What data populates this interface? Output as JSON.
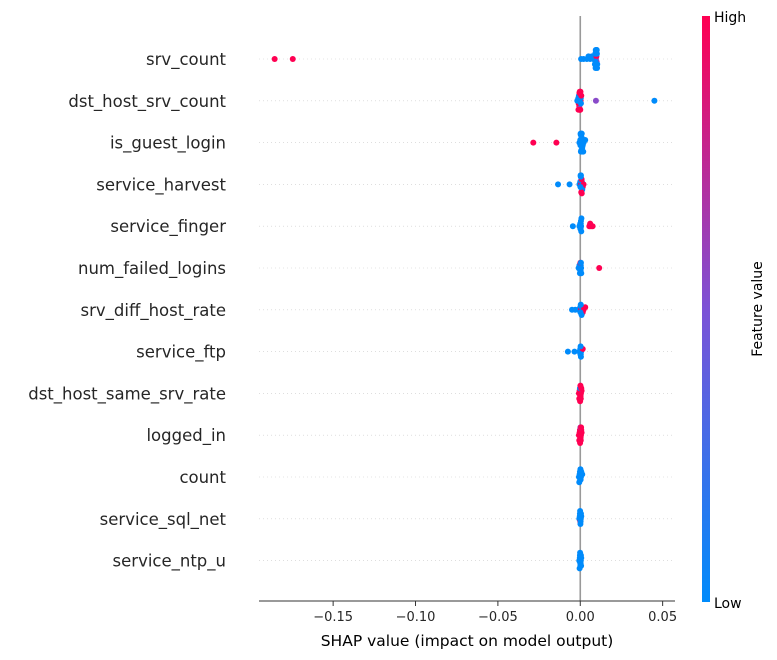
{
  "chart_data": {
    "type": "scatter",
    "title": "",
    "xlabel": "SHAP value (impact on model output)",
    "xlim": [
      -0.195,
      0.0575
    ],
    "xticks": [
      -0.15,
      -0.1,
      -0.05,
      0.0,
      0.05
    ],
    "xtick_labels": [
      "−0.15",
      "−0.10",
      "−0.05",
      "0.00",
      "0.05"
    ],
    "colorbar": {
      "label": "Feature value",
      "high": "High",
      "low": "Low",
      "low_color": "#008bfb",
      "mid_color": "#7c52d6",
      "high_color": "#ff0052"
    },
    "features": [
      {
        "name": "srv_count",
        "points": [
          {
            "x": -0.1855,
            "v": 1
          },
          {
            "x": -0.1745,
            "v": 1
          },
          {
            "x": 0.0005,
            "v": 0
          },
          {
            "x": 0.002,
            "v": 0
          },
          {
            "x": 0.004,
            "v": 0
          },
          {
            "x": 0.005,
            "v": 0
          },
          {
            "x": 0.006,
            "v": 0
          },
          {
            "x": 0.007,
            "v": 0
          },
          {
            "x": 0.008,
            "v": 0
          },
          {
            "x": 0.009,
            "v": 0
          },
          {
            "x": 0.0095,
            "v": 0
          },
          {
            "x": 0.0098,
            "v": 1
          },
          {
            "x": 0.0099,
            "v": 0.6
          },
          {
            "x": 0.0101,
            "v": 0
          },
          {
            "x": 0.0103,
            "v": 0
          },
          {
            "x": 0.0096,
            "v": 0
          },
          {
            "x": 0.0097,
            "v": 0
          },
          {
            "x": 0.0094,
            "v": 0
          },
          {
            "x": 0.0093,
            "v": 0
          },
          {
            "x": 0.0092,
            "v": 0
          },
          {
            "x": 0.0091,
            "v": 0
          },
          {
            "x": 0.0089,
            "v": 0
          },
          {
            "x": 0.0099,
            "v": 0
          },
          {
            "x": 0.0102,
            "v": 0
          },
          {
            "x": 0.01,
            "v": 0
          }
        ]
      },
      {
        "name": "dst_host_srv_count",
        "points": [
          {
            "x": -0.0015,
            "v": 1
          },
          {
            "x": -0.0012,
            "v": 0
          },
          {
            "x": -0.001,
            "v": 1
          },
          {
            "x": -0.0008,
            "v": 0
          },
          {
            "x": -0.0006,
            "v": 1
          },
          {
            "x": -0.0005,
            "v": 1
          },
          {
            "x": -0.0004,
            "v": 0.4
          },
          {
            "x": -0.0003,
            "v": 1
          },
          {
            "x": -0.0002,
            "v": 1
          },
          {
            "x": -0.0001,
            "v": 1
          },
          {
            "x": 0.0,
            "v": 1
          },
          {
            "x": 0.0001,
            "v": 1
          },
          {
            "x": 0.0002,
            "v": 1
          },
          {
            "x": 0.0003,
            "v": 0
          },
          {
            "x": 0.0004,
            "v": 0
          },
          {
            "x": 0.0006,
            "v": 1
          },
          {
            "x": -0.0018,
            "v": 0
          },
          {
            "x": -0.0011,
            "v": 1
          },
          {
            "x": 0.0,
            "v": 1
          },
          {
            "x": -0.0003,
            "v": 1
          },
          {
            "x": 0.0095,
            "v": 0.55
          },
          {
            "x": 0.045,
            "v": 0
          }
        ]
      },
      {
        "name": "is_guest_login",
        "points": [
          {
            "x": -0.0285,
            "v": 1
          },
          {
            "x": -0.0145,
            "v": 1
          },
          {
            "x": -0.0005,
            "v": 0
          },
          {
            "x": 0.0,
            "v": 0
          },
          {
            "x": 0.0005,
            "v": 0
          },
          {
            "x": 0.001,
            "v": 0
          },
          {
            "x": 0.0015,
            "v": 0
          },
          {
            "x": 0.002,
            "v": 0
          },
          {
            "x": 0.003,
            "v": 0
          },
          {
            "x": 0.0008,
            "v": 0
          },
          {
            "x": 0.0012,
            "v": 0
          },
          {
            "x": 0.0003,
            "v": 0
          },
          {
            "x": 0.0006,
            "v": 0
          },
          {
            "x": 0.0002,
            "v": 0
          },
          {
            "x": 0.0018,
            "v": 0
          },
          {
            "x": 0.0001,
            "v": 0
          },
          {
            "x": 0.0009,
            "v": 0
          },
          {
            "x": 0.0004,
            "v": 0
          },
          {
            "x": 0.0007,
            "v": 0
          },
          {
            "x": 0.0011,
            "v": 0
          }
        ]
      },
      {
        "name": "service_harvest",
        "points": [
          {
            "x": -0.0135,
            "v": 0
          },
          {
            "x": -0.0065,
            "v": 0
          },
          {
            "x": -0.0005,
            "v": 0
          },
          {
            "x": 0.0,
            "v": 0
          },
          {
            "x": 0.0005,
            "v": 1
          },
          {
            "x": 0.001,
            "v": 0
          },
          {
            "x": 0.0015,
            "v": 1
          },
          {
            "x": 0.002,
            "v": 1
          },
          {
            "x": 0.0008,
            "v": 1
          },
          {
            "x": 0.0012,
            "v": 0
          },
          {
            "x": 0.0003,
            "v": 0
          },
          {
            "x": 0.0006,
            "v": 1
          },
          {
            "x": 0.0002,
            "v": 0
          },
          {
            "x": 0.0001,
            "v": 0
          },
          {
            "x": 0.0009,
            "v": 1
          },
          {
            "x": 0.0004,
            "v": 0
          }
        ]
      },
      {
        "name": "service_finger",
        "points": [
          {
            "x": -0.0045,
            "v": 0
          },
          {
            "x": -0.0005,
            "v": 0
          },
          {
            "x": 0.0,
            "v": 0
          },
          {
            "x": 0.0005,
            "v": 0
          },
          {
            "x": 0.0003,
            "v": 0
          },
          {
            "x": 0.0001,
            "v": 0
          },
          {
            "x": 0.0002,
            "v": 0
          },
          {
            "x": 0.0004,
            "v": 0
          },
          {
            "x": 0.0006,
            "v": 0
          },
          {
            "x": 0.0007,
            "v": 0
          },
          {
            "x": 0.0055,
            "v": 1
          },
          {
            "x": 0.0065,
            "v": 1
          },
          {
            "x": 0.0075,
            "v": 1
          },
          {
            "x": 0.006,
            "v": 1
          }
        ]
      },
      {
        "name": "num_failed_logins",
        "points": [
          {
            "x": -0.001,
            "v": 0
          },
          {
            "x": -0.0005,
            "v": 0
          },
          {
            "x": 0.0,
            "v": 0
          },
          {
            "x": 0.0005,
            "v": 0
          },
          {
            "x": 0.0003,
            "v": 0
          },
          {
            "x": 0.0001,
            "v": 1
          },
          {
            "x": 0.0002,
            "v": 0
          },
          {
            "x": 0.0004,
            "v": 0
          },
          {
            "x": -0.0002,
            "v": 0
          },
          {
            "x": 0.0006,
            "v": 0
          },
          {
            "x": 0.0115,
            "v": 1
          }
        ]
      },
      {
        "name": "srv_diff_host_rate",
        "points": [
          {
            "x": -0.005,
            "v": 0
          },
          {
            "x": -0.003,
            "v": 0
          },
          {
            "x": -0.001,
            "v": 0
          },
          {
            "x": 0.0,
            "v": 0
          },
          {
            "x": 0.0005,
            "v": 1
          },
          {
            "x": 0.001,
            "v": 0
          },
          {
            "x": 0.0015,
            "v": 1
          },
          {
            "x": 0.002,
            "v": 1
          },
          {
            "x": 0.003,
            "v": 1
          },
          {
            "x": 0.0003,
            "v": 0
          },
          {
            "x": 0.0001,
            "v": 0
          },
          {
            "x": 0.0008,
            "v": 0
          }
        ]
      },
      {
        "name": "service_ftp",
        "points": [
          {
            "x": -0.0075,
            "v": 0
          },
          {
            "x": -0.0035,
            "v": 0
          },
          {
            "x": -0.0005,
            "v": 0
          },
          {
            "x": 0.0,
            "v": 0
          },
          {
            "x": 0.0005,
            "v": 0
          },
          {
            "x": 0.0015,
            "v": 1
          },
          {
            "x": 0.0003,
            "v": 0
          },
          {
            "x": 0.0001,
            "v": 0
          },
          {
            "x": 0.0002,
            "v": 0
          },
          {
            "x": 0.0004,
            "v": 0
          }
        ]
      },
      {
        "name": "dst_host_same_srv_rate",
        "points": [
          {
            "x": -0.0008,
            "v": 1
          },
          {
            "x": -0.0004,
            "v": 1
          },
          {
            "x": 0.0,
            "v": 1
          },
          {
            "x": 0.0004,
            "v": 1
          },
          {
            "x": 0.0008,
            "v": 1
          },
          {
            "x": -0.0002,
            "v": 0
          },
          {
            "x": 0.0002,
            "v": 1
          },
          {
            "x": 0.0006,
            "v": 1
          },
          {
            "x": -0.0006,
            "v": 1
          },
          {
            "x": 0.0001,
            "v": 1
          },
          {
            "x": 0.0003,
            "v": 1
          },
          {
            "x": -0.0001,
            "v": 1
          }
        ]
      },
      {
        "name": "logged_in",
        "points": [
          {
            "x": -0.0008,
            "v": 1
          },
          {
            "x": -0.0004,
            "v": 1
          },
          {
            "x": 0.0,
            "v": 1
          },
          {
            "x": 0.0004,
            "v": 1
          },
          {
            "x": 0.0008,
            "v": 1
          },
          {
            "x": -0.0002,
            "v": 1
          },
          {
            "x": 0.0002,
            "v": 1
          },
          {
            "x": 0.0006,
            "v": 1
          },
          {
            "x": -0.0006,
            "v": 1
          },
          {
            "x": 0.0001,
            "v": 0.7
          },
          {
            "x": 0.0003,
            "v": 1
          },
          {
            "x": -0.0001,
            "v": 1
          },
          {
            "x": 0.0005,
            "v": 1
          }
        ]
      },
      {
        "name": "count",
        "points": [
          {
            "x": -0.0008,
            "v": 0
          },
          {
            "x": -0.0004,
            "v": 0
          },
          {
            "x": 0.0,
            "v": 0
          },
          {
            "x": 0.0004,
            "v": 0
          },
          {
            "x": 0.0012,
            "v": 0
          },
          {
            "x": -0.0002,
            "v": 0
          },
          {
            "x": 0.0002,
            "v": 0
          },
          {
            "x": 0.0006,
            "v": 0
          },
          {
            "x": -0.0006,
            "v": 0
          },
          {
            "x": 0.0001,
            "v": 0
          }
        ]
      },
      {
        "name": "service_sql_net",
        "points": [
          {
            "x": -0.0006,
            "v": 0
          },
          {
            "x": -0.0003,
            "v": 0
          },
          {
            "x": 0.0,
            "v": 1
          },
          {
            "x": 0.0003,
            "v": 0
          },
          {
            "x": 0.0006,
            "v": 0
          },
          {
            "x": -0.0002,
            "v": 0
          },
          {
            "x": 0.0002,
            "v": 0
          },
          {
            "x": 0.0004,
            "v": 0
          },
          {
            "x": 0.0001,
            "v": 0
          },
          {
            "x": -0.0001,
            "v": 0
          }
        ]
      },
      {
        "name": "service_ntp_u",
        "points": [
          {
            "x": -0.0006,
            "v": 0
          },
          {
            "x": -0.0003,
            "v": 0
          },
          {
            "x": 0.0,
            "v": 0
          },
          {
            "x": 0.0003,
            "v": 0
          },
          {
            "x": 0.0006,
            "v": 0
          },
          {
            "x": -0.0002,
            "v": 0
          },
          {
            "x": 0.0002,
            "v": 0
          },
          {
            "x": 0.0004,
            "v": 0
          },
          {
            "x": 0.0001,
            "v": 0
          },
          {
            "x": -0.0001,
            "v": 0
          },
          {
            "x": 0.0005,
            "v": 0
          },
          {
            "x": -0.0004,
            "v": 0
          }
        ]
      }
    ]
  }
}
